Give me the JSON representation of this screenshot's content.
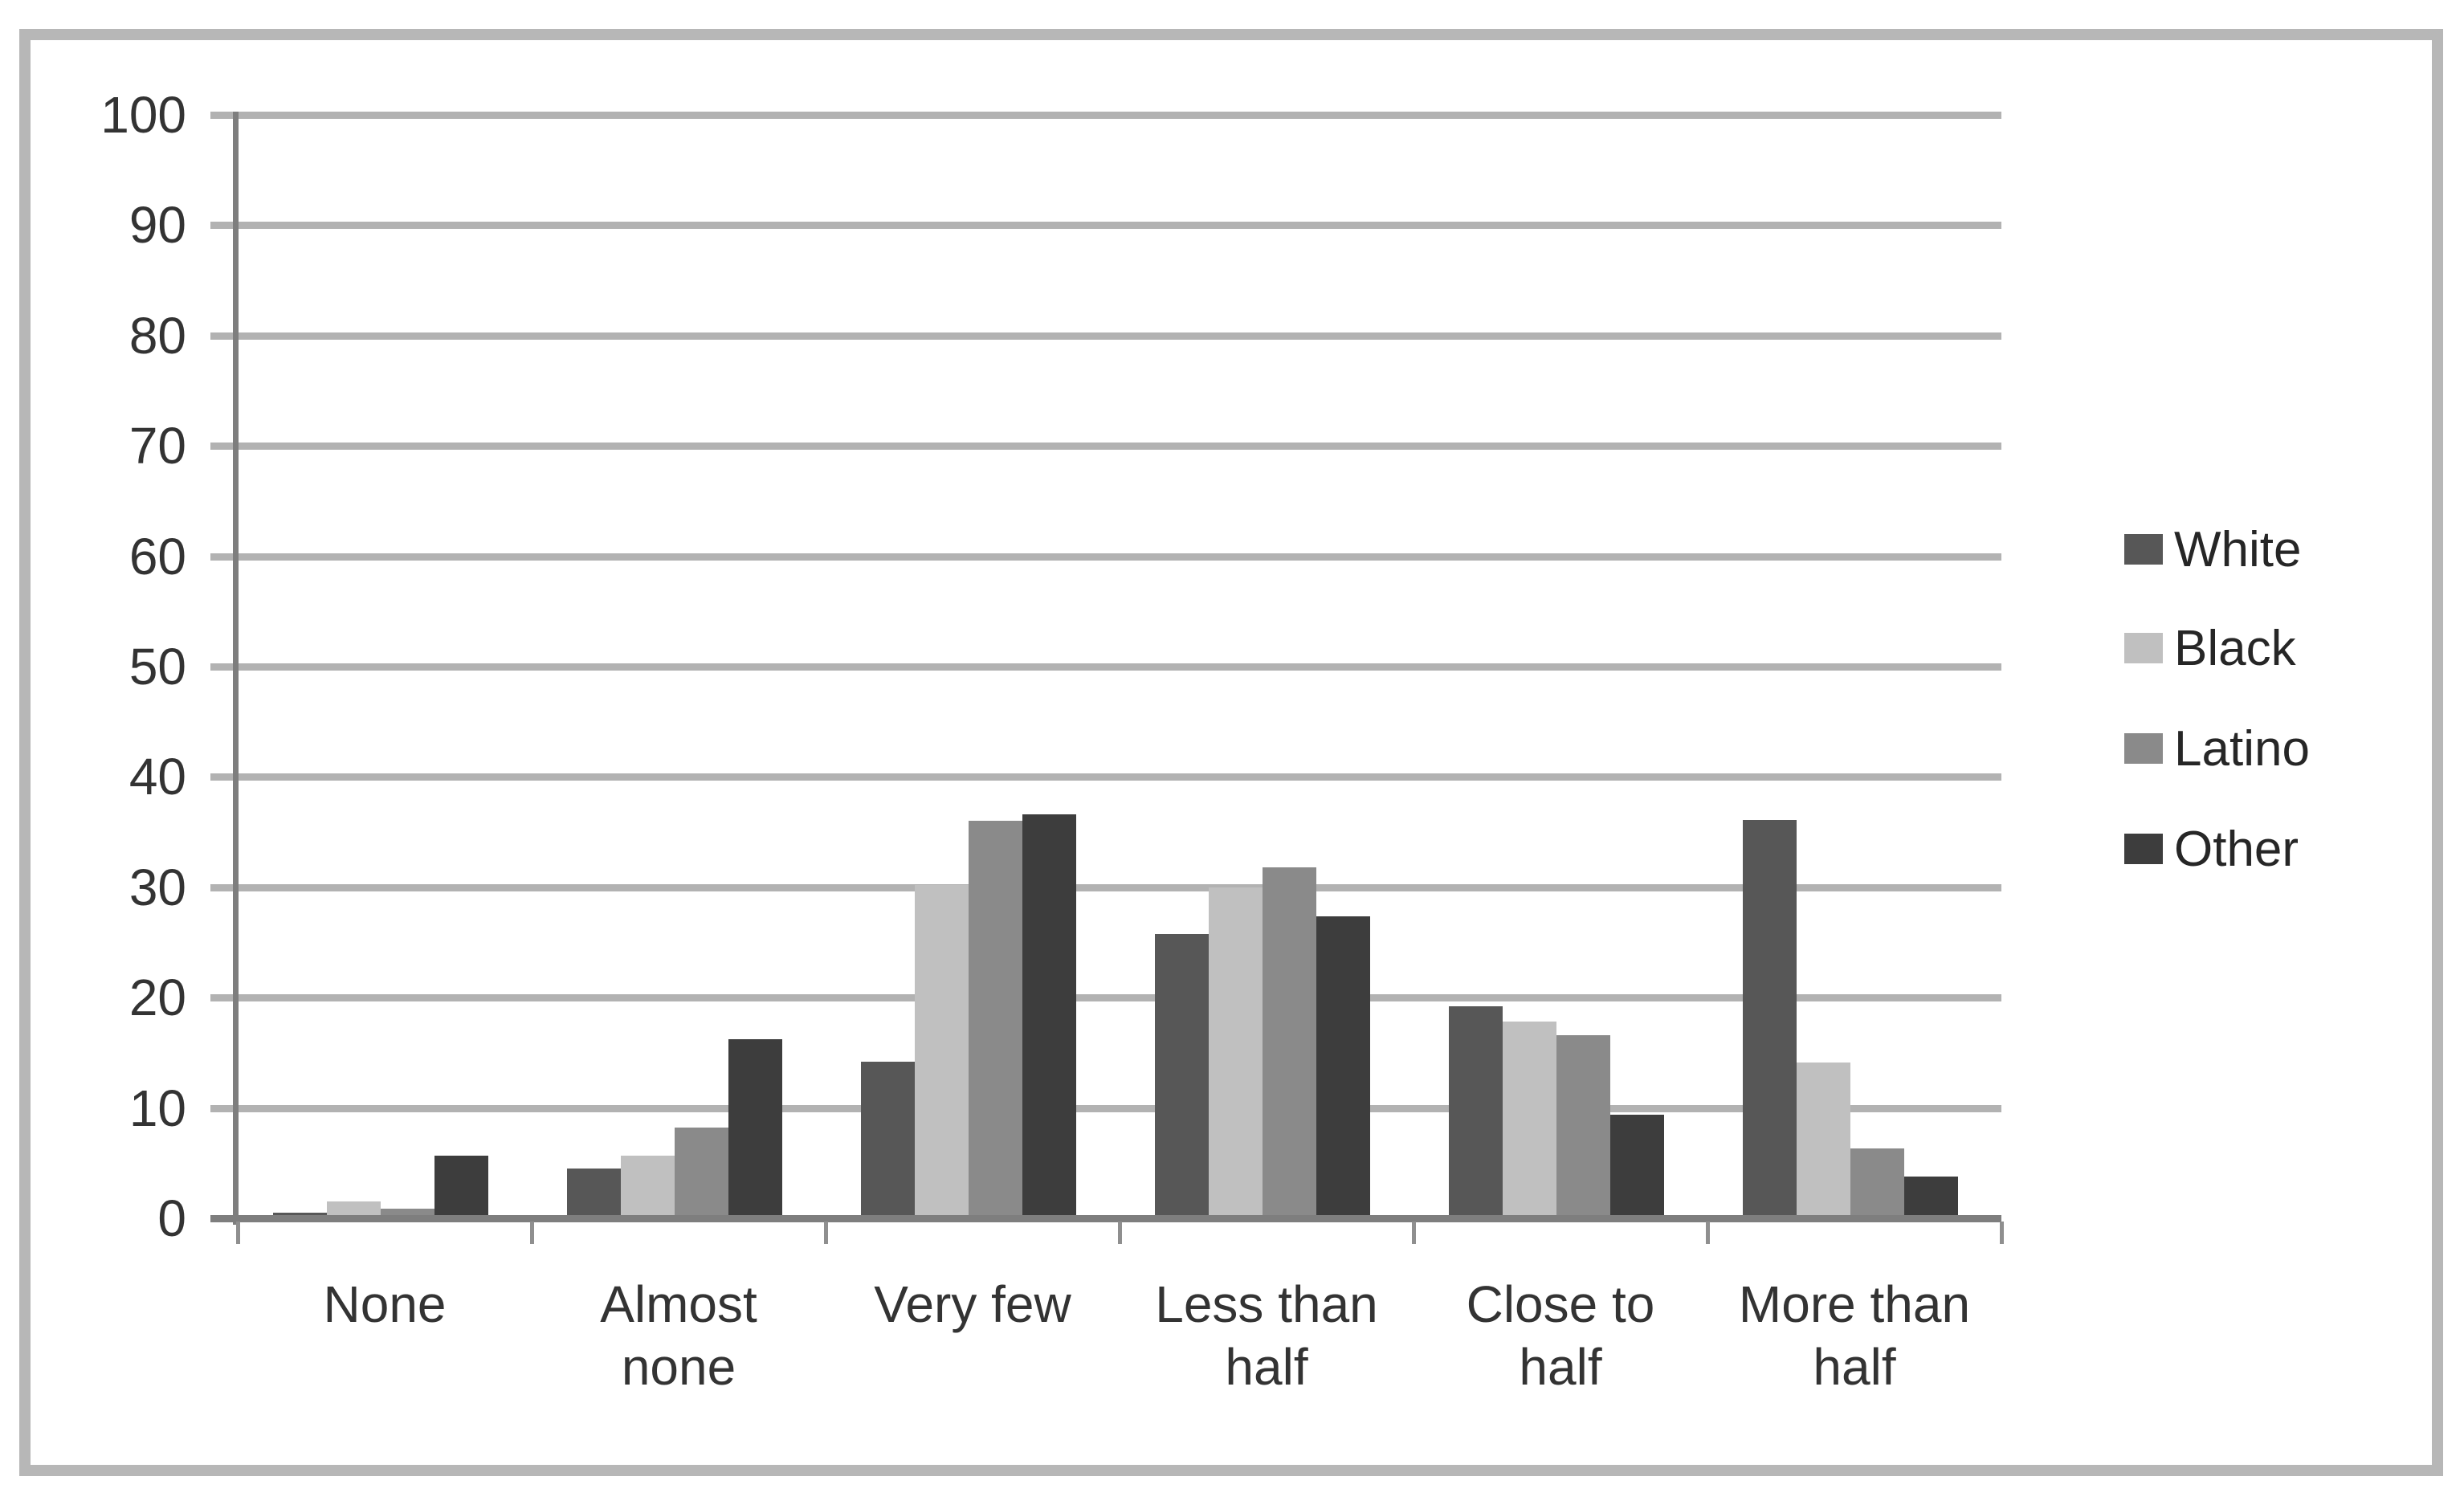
{
  "chart_data": {
    "type": "bar",
    "title": "",
    "xlabel": "",
    "ylabel": "",
    "ylim": [
      0,
      100
    ],
    "ytick_step": 10,
    "grid": true,
    "legend_position": "right",
    "categories": [
      "None",
      "Almost none",
      "Very few",
      "Less than half",
      "Close to half",
      "More than half"
    ],
    "categories_display": [
      [
        "None"
      ],
      [
        "Almost",
        "none"
      ],
      [
        "Very few"
      ],
      [
        "Less than",
        "half"
      ],
      [
        "Close to",
        "half"
      ],
      [
        "More than",
        "half"
      ]
    ],
    "y_tick_labels": [
      "0",
      "10",
      "20",
      "30",
      "40",
      "50",
      "60",
      "70",
      "80",
      "90",
      "100"
    ],
    "series": [
      {
        "name": "White",
        "color": "#575757",
        "values": [
          0.5,
          4.5,
          14.2,
          25.8,
          19.2,
          36.1
        ]
      },
      {
        "name": "Black",
        "color": "#c0c0c0",
        "values": [
          1.5,
          5.7,
          30.2,
          30.0,
          17.8,
          14.1
        ]
      },
      {
        "name": "Latino",
        "color": "#8a8a8a",
        "values": [
          0.9,
          8.2,
          36.0,
          31.8,
          16.6,
          6.3
        ]
      },
      {
        "name": "Other",
        "color": "#3d3d3d",
        "values": [
          5.7,
          16.2,
          36.6,
          27.4,
          9.4,
          3.8
        ]
      }
    ]
  },
  "colors": {
    "gridline": "#b2b2b2",
    "axis": "#7e7e7e",
    "tick": "#8f8f8f",
    "text": "#333333",
    "frame": "#b7b7b7",
    "background": "#ffffff"
  }
}
